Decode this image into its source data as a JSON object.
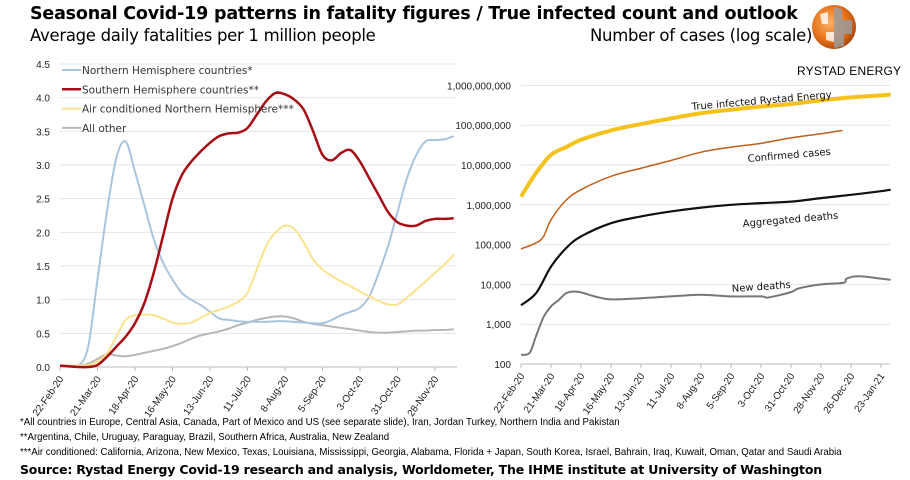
{
  "header": {
    "title": "Seasonal Covid-19 patterns in fatality figures / True infected count and outlook",
    "subtitle_left": "Average daily fatalities per 1 million people",
    "subtitle_right": "Number of cases (log scale)",
    "brand": "RYSTAD ENERGY"
  },
  "footnotes": [
    "*All countries in Europe, Central Asia, Canada, Part of Mexico and US (see separate slide), Iran, Jordan Turkey, Northern India and Pakistan",
    "**Argentina, Chile, Uruguay, Paraguay, Brazil, Southern Africa,  Australia, New Zealand",
    "***Air conditioned: California, Arizona, New Mexico, Texas, Louisiana, Mississippi, Georgia, Alabama, Florida + Japan, South Korea, Israel, Bahrain, Iraq, Kuwait, Oman, Qatar and Saudi Arabia"
  ],
  "source": "Source: Rystad Energy Covid-19 research and analysis, Worldometer, The IHME institute at University of Washington",
  "chart_data": [
    {
      "type": "line",
      "title": "Average daily fatalities per 1 million people",
      "ylim": [
        0,
        4.5
      ],
      "yticks": [
        "0.0",
        "0.5",
        "1.0",
        "1.5",
        "2.0",
        "2.5",
        "3.0",
        "3.5",
        "4.0",
        "4.5"
      ],
      "xticks": [
        "22-Feb-20",
        "21-Mar-20",
        "18-Apr-20",
        "16-May-20",
        "13-Jun-20",
        "11-Jul-20",
        "8-Aug-20",
        "5-Sep-20",
        "3-Oct-20",
        "31-Oct-20",
        "28-Nov-20"
      ],
      "grid": true,
      "legend": "top-left",
      "x": [
        "2020-02-22",
        "2020-02-29",
        "2020-03-07",
        "2020-03-14",
        "2020-03-21",
        "2020-03-28",
        "2020-04-04",
        "2020-04-11",
        "2020-04-18",
        "2020-04-25",
        "2020-05-02",
        "2020-05-09",
        "2020-05-16",
        "2020-05-23",
        "2020-05-30",
        "2020-06-06",
        "2020-06-13",
        "2020-06-20",
        "2020-06-27",
        "2020-07-04",
        "2020-07-11",
        "2020-07-18",
        "2020-07-25",
        "2020-08-01",
        "2020-08-08",
        "2020-08-15",
        "2020-08-22",
        "2020-08-29",
        "2020-09-05",
        "2020-09-12",
        "2020-09-19",
        "2020-09-26",
        "2020-10-03",
        "2020-10-10",
        "2020-10-17",
        "2020-10-24",
        "2020-10-31",
        "2020-11-07",
        "2020-11-14",
        "2020-11-21",
        "2020-11-28",
        "2020-12-05",
        "2020-12-12"
      ],
      "series": [
        {
          "name": "Northern Hemisphere countries*",
          "color": "#a9c4de",
          "width": 2,
          "values": [
            0.02,
            0.02,
            0.02,
            0.3,
            1.3,
            2.3,
            3.1,
            3.35,
            2.9,
            2.4,
            1.9,
            1.55,
            1.3,
            1.1,
            1.0,
            0.92,
            0.82,
            0.72,
            0.7,
            0.68,
            0.67,
            0.67,
            0.67,
            0.68,
            0.68,
            0.67,
            0.66,
            0.65,
            0.65,
            0.7,
            0.77,
            0.82,
            0.88,
            1.05,
            1.4,
            1.8,
            2.3,
            2.8,
            3.15,
            3.35,
            3.37,
            3.38,
            3.43
          ]
        },
        {
          "name": "Southern Hemisphere countries**",
          "color": "#a50f15",
          "width": 2.5,
          "values": [
            0.02,
            0.01,
            0,
            0,
            0.03,
            0.15,
            0.3,
            0.45,
            0.65,
            0.95,
            1.4,
            1.95,
            2.5,
            2.85,
            3.05,
            3.2,
            3.33,
            3.43,
            3.47,
            3.48,
            3.55,
            3.75,
            3.95,
            4.07,
            4.05,
            3.97,
            3.82,
            3.5,
            3.15,
            3.07,
            3.18,
            3.22,
            3.05,
            2.8,
            2.55,
            2.3,
            2.15,
            2.1,
            2.1,
            2.17,
            2.2,
            2.2,
            2.21
          ]
        },
        {
          "name": "Air conditioned Northern Hemisphere***",
          "color": "#fbe38e",
          "width": 2,
          "values": [
            0.02,
            0.02,
            0.02,
            0.03,
            0.08,
            0.2,
            0.45,
            0.7,
            0.77,
            0.78,
            0.77,
            0.72,
            0.66,
            0.64,
            0.66,
            0.73,
            0.8,
            0.85,
            0.9,
            0.97,
            1.1,
            1.45,
            1.8,
            2.0,
            2.1,
            2.05,
            1.85,
            1.6,
            1.45,
            1.35,
            1.27,
            1.2,
            1.12,
            1.05,
            0.98,
            0.93,
            0.93,
            1.03,
            1.15,
            1.27,
            1.4,
            1.52,
            1.67
          ]
        },
        {
          "name": "All other",
          "color": "#b7b7b7",
          "width": 2,
          "values": [
            0.02,
            0.02,
            0.02,
            0.05,
            0.12,
            0.19,
            0.17,
            0.16,
            0.18,
            0.21,
            0.24,
            0.27,
            0.31,
            0.36,
            0.42,
            0.47,
            0.5,
            0.53,
            0.57,
            0.62,
            0.66,
            0.7,
            0.73,
            0.75,
            0.75,
            0.72,
            0.67,
            0.64,
            0.62,
            0.6,
            0.58,
            0.56,
            0.54,
            0.52,
            0.51,
            0.51,
            0.52,
            0.53,
            0.54,
            0.54,
            0.55,
            0.55,
            0.56
          ]
        }
      ]
    },
    {
      "type": "line",
      "title": "Number of cases (log scale)",
      "yscale": "log",
      "ylim": [
        100,
        1000000000
      ],
      "yticks": [
        "100",
        "1,000",
        "10,000",
        "100,000",
        "1,000,000",
        "10,000,000",
        "100,000,000",
        "1,000,000,000"
      ],
      "xticks": [
        "22-Feb-20",
        "21-Mar-20",
        "18-Apr-20",
        "16-May-20",
        "13-Jun-20",
        "11-Jul-20",
        "8-Aug-20",
        "5-Sep-20",
        "3-Oct-20",
        "31-Oct-20",
        "28-Nov-20",
        "26-Dec-20",
        "23-Jan-21"
      ],
      "grid": true,
      "series": [
        {
          "name": "True infected Rystad Energy",
          "color": "#f4c21b",
          "width": 4,
          "x": [
            "2020-02-22",
            "2020-03-07",
            "2020-03-21",
            "2020-04-04",
            "2020-04-18",
            "2020-05-16",
            "2020-06-13",
            "2020-07-11",
            "2020-08-08",
            "2020-09-05",
            "2020-10-03",
            "2020-10-31",
            "2020-11-28",
            "2020-12-26",
            "2021-01-23",
            "2021-02-01"
          ],
          "values": [
            1600000,
            6300000,
            18000000,
            28000000,
            43000000,
            74000000,
            107000000,
            148000000,
            200000000,
            245000000,
            295000000,
            340000000,
            420000000,
            500000000,
            560000000,
            590000000
          ]
        },
        {
          "name": "Confirmed cases",
          "color": "#c0601a",
          "width": 1.5,
          "x": [
            "2020-02-22",
            "2020-03-07",
            "2020-03-14",
            "2020-03-21",
            "2020-04-04",
            "2020-04-18",
            "2020-05-16",
            "2020-06-13",
            "2020-07-11",
            "2020-08-08",
            "2020-09-05",
            "2020-10-03",
            "2020-10-31",
            "2020-11-28",
            "2020-12-18"
          ],
          "values": [
            78000,
            110000,
            160000,
            420000,
            1300000,
            2400000,
            5200000,
            8300000,
            13000000,
            21000000,
            28000000,
            35000000,
            48000000,
            61000000,
            74000000
          ]
        },
        {
          "name": "Aggregated deaths",
          "color": "#111111",
          "width": 2.2,
          "x": [
            "2020-02-22",
            "2020-03-07",
            "2020-03-21",
            "2020-04-04",
            "2020-04-18",
            "2020-05-16",
            "2020-06-13",
            "2020-07-11",
            "2020-08-08",
            "2020-09-05",
            "2020-10-03",
            "2020-10-31",
            "2020-11-28",
            "2020-12-26",
            "2021-01-23",
            "2021-02-01"
          ],
          "values": [
            3000,
            6000,
            28000,
            81000,
            160000,
            345000,
            510000,
            680000,
            850000,
            1000000,
            1100000,
            1200000,
            1470000,
            1780000,
            2200000,
            2400000
          ]
        },
        {
          "name": "New deaths",
          "color": "#777777",
          "width": 2,
          "x": [
            "2020-02-22",
            "2020-03-01",
            "2020-03-07",
            "2020-03-14",
            "2020-03-21",
            "2020-03-28",
            "2020-04-04",
            "2020-04-11",
            "2020-04-18",
            "2020-05-02",
            "2020-05-16",
            "2020-06-13",
            "2020-07-11",
            "2020-08-08",
            "2020-09-05",
            "2020-10-03",
            "2020-10-10",
            "2020-10-31",
            "2020-11-07",
            "2020-11-28",
            "2020-12-19",
            "2020-12-22",
            "2021-01-02",
            "2021-01-23",
            "2021-02-01"
          ],
          "values": [
            170,
            190,
            500,
            1500,
            2800,
            4000,
            6000,
            6600,
            6300,
            4900,
            4200,
            4500,
            5000,
            5500,
            5000,
            5000,
            4700,
            6400,
            7900,
            10000,
            11000,
            14000,
            16000,
            14000,
            13000
          ]
        }
      ]
    }
  ]
}
